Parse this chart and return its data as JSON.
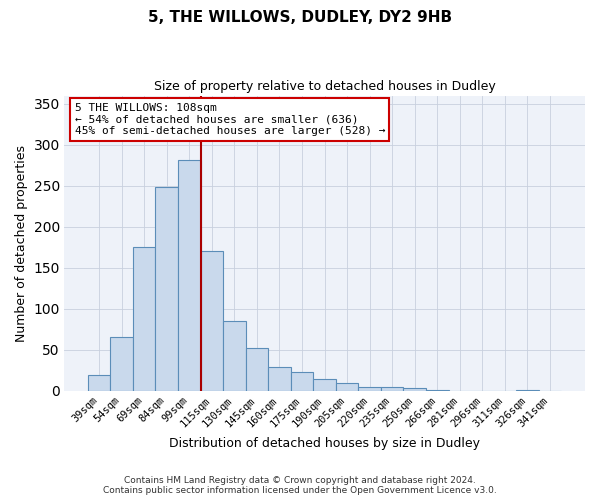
{
  "title": "5, THE WILLOWS, DUDLEY, DY2 9HB",
  "subtitle": "Size of property relative to detached houses in Dudley",
  "xlabel": "Distribution of detached houses by size in Dudley",
  "ylabel": "Number of detached properties",
  "bar_labels": [
    "39sqm",
    "54sqm",
    "69sqm",
    "84sqm",
    "99sqm",
    "115sqm",
    "130sqm",
    "145sqm",
    "160sqm",
    "175sqm",
    "190sqm",
    "205sqm",
    "220sqm",
    "235sqm",
    "250sqm",
    "266sqm",
    "281sqm",
    "296sqm",
    "311sqm",
    "326sqm",
    "341sqm"
  ],
  "bar_values": [
    20,
    66,
    176,
    249,
    282,
    170,
    85,
    52,
    29,
    23,
    15,
    10,
    5,
    5,
    4,
    1,
    0,
    0,
    0,
    1,
    0
  ],
  "bar_color": "#c9d9ec",
  "bar_edge_color": "#5b8db8",
  "vline_color": "#aa0000",
  "annotation_text": "5 THE WILLOWS: 108sqm\n← 54% of detached houses are smaller (636)\n45% of semi-detached houses are larger (528) →",
  "annotation_box_color": "#ffffff",
  "annotation_box_edge": "#cc0000",
  "ylim": [
    0,
    360
  ],
  "yticks": [
    0,
    50,
    100,
    150,
    200,
    250,
    300,
    350
  ],
  "footer_line1": "Contains HM Land Registry data © Crown copyright and database right 2024.",
  "footer_line2": "Contains public sector information licensed under the Open Government Licence v3.0.",
  "bg_color": "#ffffff",
  "plot_bg_color": "#eef2f9",
  "grid_color": "#c8d0de"
}
